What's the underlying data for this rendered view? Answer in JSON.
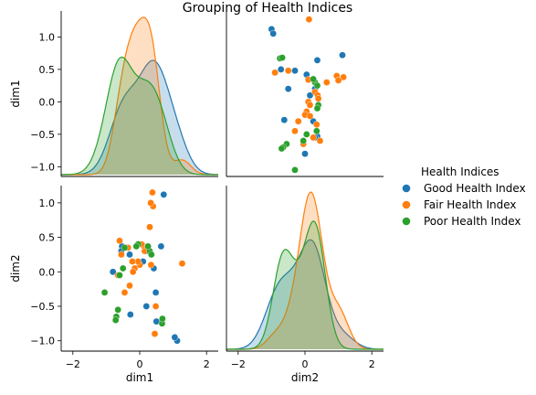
{
  "chart_data": {
    "type": "pairplot",
    "title": "Grouping of Health Indices",
    "variables": [
      "dim1",
      "dim2"
    ],
    "legend": {
      "title": "Health Indices",
      "position": "right",
      "entries": [
        "Good Health Index",
        "Fair Health Index",
        "Poor Health Index"
      ]
    },
    "axes": {
      "dim1": {
        "lim": [
          -2.35,
          2.35
        ],
        "lim_y": [
          -1.15,
          1.4
        ],
        "ticks": [
          -2,
          0,
          2
        ],
        "ticks_y": [
          -1.0,
          -0.5,
          0.0,
          0.5,
          1.0
        ],
        "tick_labels_y": [
          "−1.0",
          "−0.5",
          "0.0",
          "0.5",
          "1.0"
        ]
      },
      "dim2": {
        "lim": [
          -2.35,
          2.35
        ],
        "lim_y": [
          -1.15,
          1.25
        ],
        "ticks": [
          -2,
          0,
          2
        ],
        "ticks_y": [
          -1.0,
          -0.5,
          0.0,
          0.5,
          1.0
        ],
        "tick_labels_y": [
          "−1.0",
          "−0.5",
          "0.0",
          "0.5",
          "1.0"
        ]
      }
    },
    "x_tick_labels": [
      "−2",
      "0",
      "2"
    ],
    "series": [
      {
        "name": "Good Health Index",
        "color": "#1f77b4",
        "points": [
          {
            "dim1": 1.12,
            "dim2": -1.0
          },
          {
            "dim1": 1.05,
            "dim2": -0.95
          },
          {
            "dim1": 0.72,
            "dim2": 1.12
          },
          {
            "dim1": 0.64,
            "dim2": 0.37
          },
          {
            "dim1": 0.5,
            "dim2": -0.72
          },
          {
            "dim1": 0.48,
            "dim2": -0.3
          },
          {
            "dim1": 0.42,
            "dim2": 0.05
          },
          {
            "dim1": 0.2,
            "dim2": 0.3
          },
          {
            "dim1": -0.28,
            "dim2": -0.62
          },
          {
            "dim1": -0.3,
            "dim2": 0.25
          },
          {
            "dim1": -0.53,
            "dim2": 0.37
          },
          {
            "dim1": -0.55,
            "dim2": 0.3
          },
          {
            "dim1": -0.8,
            "dim2": 0.0
          },
          {
            "dim1": 0.2,
            "dim2": -0.5
          },
          {
            "dim1": 0.1,
            "dim2": 0.15
          }
        ]
      },
      {
        "name": "Fair Health Index",
        "color": "#ff7f0e",
        "points": [
          {
            "dim1": 1.27,
            "dim2": 0.12
          },
          {
            "dim1": 0.45,
            "dim2": -0.9
          },
          {
            "dim1": 0.4,
            "dim2": 0.95
          },
          {
            "dim1": 0.38,
            "dim2": 1.15
          },
          {
            "dim1": 0.34,
            "dim2": 0.1
          },
          {
            "dim1": 0.33,
            "dim2": 1.0
          },
          {
            "dim1": 0.3,
            "dim2": 0.65
          },
          {
            "dim1": 0.15,
            "dim2": 0.3
          },
          {
            "dim1": 0.1,
            "dim2": 0.38
          },
          {
            "dim1": 0.05,
            "dim2": 0.4
          },
          {
            "dim1": 0.0,
            "dim2": 0.1
          },
          {
            "dim1": -0.05,
            "dim2": 0.15
          },
          {
            "dim1": -0.15,
            "dim2": 0.05
          },
          {
            "dim1": -0.2,
            "dim2": 0.0
          },
          {
            "dim1": -0.22,
            "dim2": 0.15
          },
          {
            "dim1": -0.3,
            "dim2": -0.2
          },
          {
            "dim1": -0.35,
            "dim2": 0.35
          },
          {
            "dim1": -0.45,
            "dim2": -0.3
          },
          {
            "dim1": -0.55,
            "dim2": 0.25
          },
          {
            "dim1": -0.6,
            "dim2": 0.45
          },
          {
            "dim1": -0.65,
            "dim2": -0.05
          },
          {
            "dim1": 0.48,
            "dim2": -0.5
          }
        ]
      },
      {
        "name": "Poor Health Index",
        "color": "#2ca02c",
        "points": [
          {
            "dim1": 0.67,
            "dim2": -0.75
          },
          {
            "dim1": 0.68,
            "dim2": -0.68
          },
          {
            "dim1": 0.3,
            "dim2": 0.3
          },
          {
            "dim1": 0.35,
            "dim2": 0.25
          },
          {
            "dim1": 0.25,
            "dim2": 0.37
          },
          {
            "dim1": -0.05,
            "dim2": 0.4
          },
          {
            "dim1": -0.1,
            "dim2": 0.37
          },
          {
            "dim1": -0.45,
            "dim2": 0.35
          },
          {
            "dim1": -0.5,
            "dim2": 0.05
          },
          {
            "dim1": -0.6,
            "dim2": -0.05
          },
          {
            "dim1": -0.65,
            "dim2": -0.55
          },
          {
            "dim1": -0.7,
            "dim2": -0.65
          },
          {
            "dim1": -0.72,
            "dim2": -0.7
          },
          {
            "dim1": -1.05,
            "dim2": -0.3
          }
        ]
      }
    ]
  }
}
